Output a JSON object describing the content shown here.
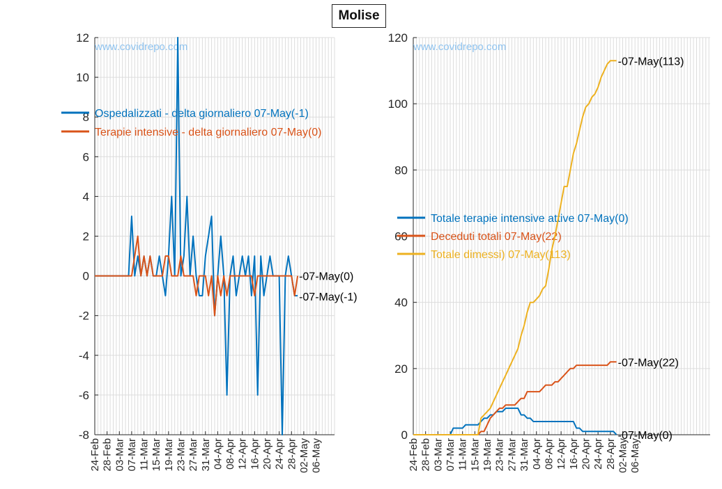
{
  "title": "Molise",
  "watermark": "www.covidrepo.com",
  "chart_data": [
    {
      "type": "line",
      "ylim": [
        -8,
        12
      ],
      "yticks": [
        -8,
        -6,
        -4,
        -2,
        0,
        2,
        4,
        6,
        8,
        10,
        12
      ],
      "xlabels": [
        "24-Feb",
        "28-Feb",
        "03-Mar",
        "07-Mar",
        "11-Mar",
        "15-Mar",
        "19-Mar",
        "23-Mar",
        "27-Mar",
        "31-Mar",
        "04-Apr",
        "08-Apr",
        "12-Apr",
        "16-Apr",
        "20-Apr",
        "24-Apr",
        "28-Apr",
        "02-May",
        "06-May"
      ],
      "grid": true,
      "legend_position": "top-left",
      "series": [
        {
          "name": "Ospedalizzati - delta giornaliero 07-May(-1)",
          "color": "#0072bd",
          "end_label": "-07-May(-1)",
          "values": [
            0,
            0,
            0,
            0,
            0,
            0,
            0,
            0,
            0,
            0,
            0,
            0,
            3,
            0,
            1,
            0,
            1,
            0,
            1,
            0,
            0,
            1,
            0,
            -1,
            1,
            4,
            0,
            12,
            0,
            1,
            4,
            0,
            2,
            0,
            -1,
            -1,
            1,
            2,
            3,
            -2,
            0,
            2,
            0,
            -6,
            0,
            1,
            -1,
            0,
            1,
            0,
            1,
            -1,
            1,
            -6,
            1,
            -1,
            0,
            1,
            0,
            0,
            0,
            -8,
            0,
            1,
            0,
            -1,
            -1
          ]
        },
        {
          "name": "Terapie intensive - delta giornaliero 07-May(0)",
          "color": "#d95319",
          "end_label": "-07-May(0)",
          "values": [
            0,
            0,
            0,
            0,
            0,
            0,
            0,
            0,
            0,
            0,
            0,
            0,
            0,
            1,
            2,
            0,
            1,
            0,
            1,
            0,
            0,
            0,
            0,
            1,
            1,
            0,
            0,
            0,
            1,
            0,
            0,
            0,
            0,
            -1,
            0,
            0,
            0,
            -1,
            0,
            -2,
            0,
            -1,
            0,
            -1,
            0,
            0,
            0,
            0,
            0,
            0,
            0,
            0,
            -1,
            0,
            0,
            0,
            0,
            0,
            0,
            0,
            0,
            0,
            0,
            0,
            0,
            -1,
            0
          ]
        }
      ]
    },
    {
      "type": "line",
      "ylim": [
        0,
        120
      ],
      "yticks": [
        0,
        20,
        40,
        60,
        80,
        100,
        120
      ],
      "xlabels": [
        "24-Feb",
        "28-Feb",
        "03-Mar",
        "07-Mar",
        "11-Mar",
        "15-Mar",
        "19-Mar",
        "23-Mar",
        "27-Mar",
        "31-Mar",
        "04-Apr",
        "08-Apr",
        "12-Apr",
        "16-Apr",
        "20-Apr",
        "24-Apr",
        "28-Apr",
        "02-May",
        "06-May"
      ],
      "grid": true,
      "legend_position": "middle-left",
      "series": [
        {
          "name": "Totale terapie intensive attive 07-May(0)",
          "color": "#0072bd",
          "end_label": "-07-May(0)",
          "values": [
            0,
            0,
            0,
            0,
            0,
            0,
            0,
            0,
            0,
            0,
            0,
            0,
            0,
            2,
            2,
            2,
            2,
            3,
            3,
            3,
            3,
            3,
            4,
            5,
            5,
            6,
            6,
            7,
            7,
            7,
            8,
            8,
            8,
            8,
            8,
            6,
            6,
            5,
            5,
            4,
            4,
            4,
            4,
            4,
            4,
            4,
            4,
            4,
            4,
            4,
            4,
            4,
            4,
            2,
            2,
            1,
            1,
            1,
            1,
            1,
            1,
            1,
            1,
            1,
            1,
            1,
            0
          ]
        },
        {
          "name": "Deceduti totali 07-May(22)",
          "color": "#d95319",
          "end_label": "-07-May(22)",
          "values": [
            0,
            0,
            0,
            0,
            0,
            0,
            0,
            0,
            0,
            0,
            0,
            0,
            0,
            0,
            0,
            0,
            0,
            0,
            0,
            0,
            0,
            0,
            1,
            1,
            3,
            5,
            6,
            7,
            8,
            8,
            9,
            9,
            9,
            9,
            10,
            11,
            11,
            13,
            13,
            13,
            13,
            13,
            14,
            15,
            15,
            15,
            16,
            16,
            17,
            18,
            19,
            20,
            20,
            21,
            21,
            21,
            21,
            21,
            21,
            21,
            21,
            21,
            21,
            21,
            22,
            22,
            22
          ]
        },
        {
          "name": "Totale dimessi) 07-May(113)",
          "color": "#edb120",
          "end_label": "-07-May(113)",
          "values": [
            0,
            0,
            0,
            0,
            0,
            0,
            0,
            0,
            0,
            0,
            0,
            0,
            0,
            0,
            0,
            0,
            0,
            0,
            0,
            0,
            0,
            0,
            5,
            6,
            7,
            8,
            10,
            12,
            14,
            16,
            18,
            20,
            22,
            24,
            26,
            30,
            33,
            37,
            40,
            40,
            41,
            42,
            44,
            45,
            50,
            56,
            60,
            65,
            70,
            75,
            75,
            80,
            85,
            88,
            92,
            96,
            99,
            100,
            102,
            103,
            105,
            108,
            110,
            112,
            113,
            113,
            113
          ]
        }
      ]
    }
  ]
}
